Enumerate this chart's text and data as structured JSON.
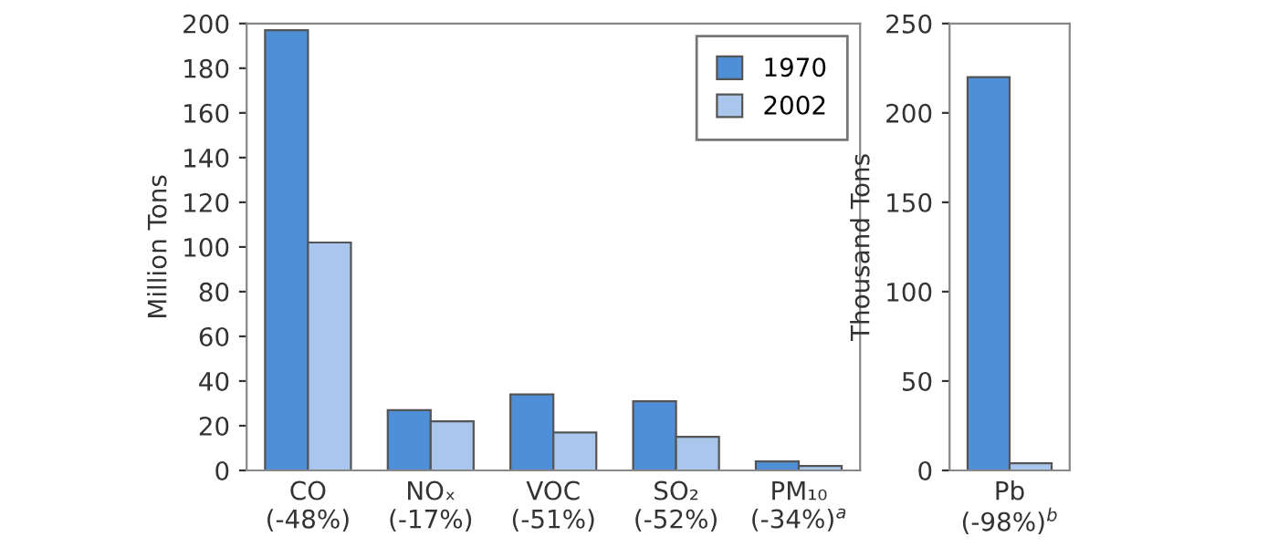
{
  "chart_data": [
    {
      "type": "bar",
      "ylabel": "Million Tons",
      "categories": [
        "CO\n(-48%)",
        "NOₓ\n(-17%)",
        "VOC\n(-51%)",
        "SO₂\n(-52%)",
        "PM₁₀\n(-34%)$^{a}$"
      ],
      "series": [
        {
          "name": "1970",
          "color": "#4f8fd8",
          "values": [
            197,
            27,
            34,
            31,
            4
          ]
        },
        {
          "name": "2002",
          "color": "#a9c6ec",
          "values": [
            102,
            22,
            17,
            15,
            2
          ]
        }
      ],
      "ylim": [
        0,
        200
      ],
      "yticks": [
        0,
        20,
        40,
        60,
        80,
        100,
        120,
        140,
        160,
        180,
        200
      ],
      "grid": false,
      "legend": "top right"
    },
    {
      "type": "bar",
      "ylabel": "Thousand Tons",
      "categories": [
        "Pb\n(-98%)$^{b}$"
      ],
      "series": [
        {
          "color": "#4f8fd8",
          "values": [
            220
          ]
        },
        {
          "color": "#a9c6ec",
          "values": [
            4
          ]
        }
      ],
      "ylim": [
        0,
        250
      ],
      "yticks": [
        0,
        50,
        100,
        150,
        200,
        250
      ],
      "grid": false
    }
  ]
}
